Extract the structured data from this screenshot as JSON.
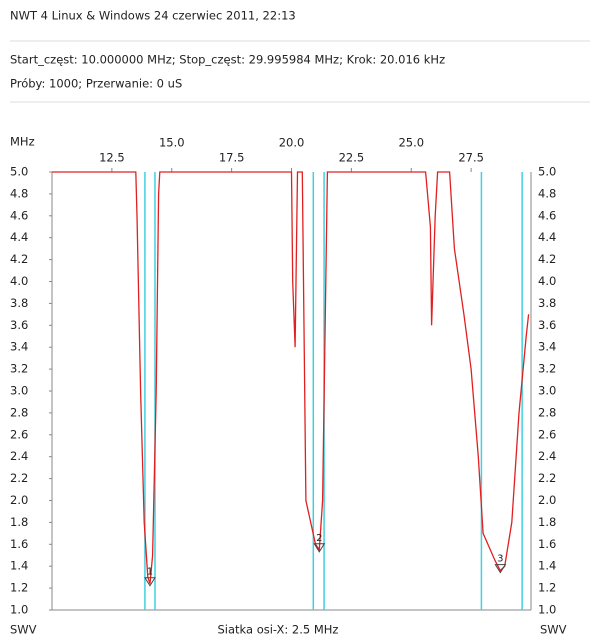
{
  "chart_data": {
    "type": "line",
    "title": "NWT 4 Linux & Windows  24 czerwiec 2011, 22:13",
    "subtitle": "Start_częst: 10.000000 MHz; Stop_częst: 29.995984 MHz; Krok: 20.016 kHz",
    "subtitle2": "Próby: 1000; Przerwanie:    0 uS",
    "x_unit": "MHz",
    "y_label_left": "SWV",
    "y_label_right": "SWV",
    "x_label": "Siatka osi-X: 2.5 MHz",
    "xlim": [
      10,
      30
    ],
    "xticks": [
      12.5,
      {
        "value": 15,
        "label": "15.0"
      },
      17.5,
      {
        "value": 20,
        "label": "20.0"
      },
      22.5,
      {
        "value": 25,
        "label": "25.0"
      },
      27.5
    ],
    "ylim": [
      1,
      5
    ],
    "yticks": [
      {
        "value": 1,
        "label": "1.0"
      },
      1.2,
      1.4,
      1.6,
      1.8,
      {
        "value": 2,
        "label": "2.0"
      },
      2.2,
      2.4,
      2.6,
      2.8,
      {
        "value": 3,
        "label": "3.0"
      },
      3.2,
      3.4,
      3.6,
      3.8,
      {
        "value": 4,
        "label": "4.0"
      },
      4.2,
      4.4,
      4.6,
      4.8,
      {
        "value": 5,
        "label": "5.0"
      }
    ],
    "series": [
      {
        "name": "SWV",
        "color": "#e02020",
        "x": [
          10.0,
          13.5,
          13.55,
          13.7,
          13.85,
          14.0,
          14.09,
          14.2,
          14.35,
          14.45,
          14.5,
          20.0,
          20.05,
          20.15,
          20.25,
          20.45,
          20.5,
          20.6,
          20.8,
          21.0,
          21.16,
          21.3,
          21.4,
          21.5,
          25.6,
          25.8,
          25.85,
          26.0,
          26.1,
          26.6,
          26.8,
          27.2,
          27.5,
          27.8,
          28.0,
          28.2,
          28.5,
          28.72,
          28.9,
          29.2,
          29.5,
          29.8,
          29.9
        ],
        "values": [
          5.0,
          5.0,
          4.6,
          3.0,
          1.8,
          1.3,
          1.24,
          1.5,
          3.0,
          4.8,
          5.0,
          5.0,
          4.0,
          3.4,
          5.0,
          5.0,
          4.0,
          2.0,
          1.8,
          1.6,
          1.55,
          2.0,
          3.5,
          5.0,
          5.0,
          4.5,
          3.6,
          4.6,
          5.0,
          5.0,
          4.3,
          3.7,
          3.2,
          2.4,
          1.7,
          1.6,
          1.45,
          1.36,
          1.4,
          1.8,
          2.8,
          3.5,
          3.7
        ]
      }
    ],
    "marker_lines": {
      "color": "#40d0e0",
      "x": [
        13.88,
        14.3,
        20.91,
        21.36,
        27.93,
        29.63
      ]
    },
    "markers": [
      {
        "label": "1",
        "x": 14.09,
        "y": 1.24
      },
      {
        "label": "2",
        "x": 21.16,
        "y": 1.55
      },
      {
        "label": "3",
        "x": 28.72,
        "y": 1.36
      }
    ]
  }
}
